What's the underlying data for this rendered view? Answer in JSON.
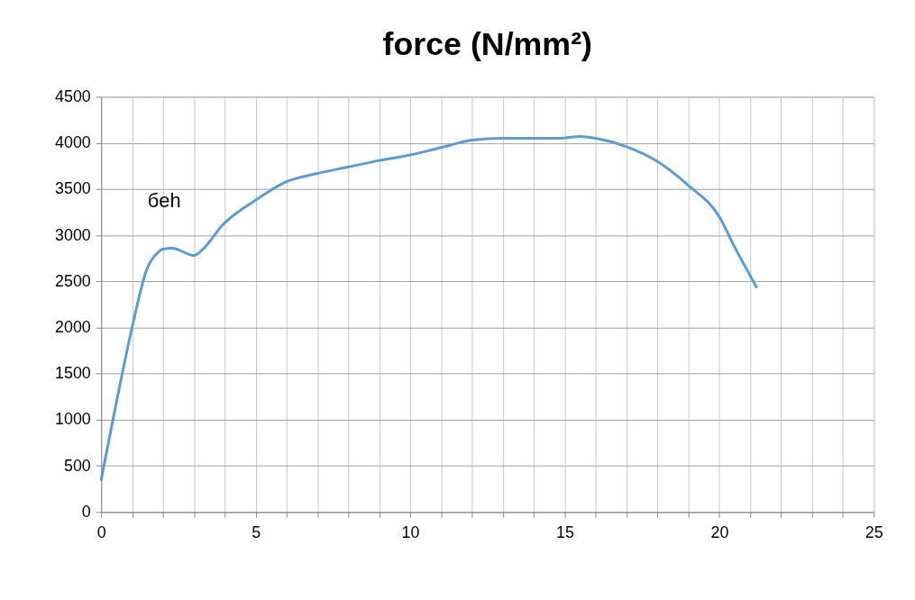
{
  "chart_data": {
    "type": "line",
    "title": "force (N/mm²)",
    "x": [
      0,
      0.5,
      1,
      1.5,
      1.8,
      2,
      2.3,
      3,
      3.3,
      3.9,
      5,
      6,
      7,
      8,
      9,
      10,
      11,
      12,
      13,
      14.8,
      15.5,
      16,
      17,
      18,
      19,
      20,
      20.5,
      21.2
    ],
    "series": [
      {
        "color": "#5b9bd5",
        "values": [
          350,
          1200,
          2000,
          2650,
          2800,
          2850,
          2860,
          2780,
          2850,
          3100,
          3380,
          3580,
          3670,
          3740,
          3810,
          3870,
          3950,
          4030,
          4050,
          4050,
          4070,
          4050,
          3960,
          3800,
          3540,
          3200,
          2870,
          2440
        ]
      }
    ],
    "xlim": [
      0,
      25
    ],
    "xticks": [
      0,
      {
        "value": 1,
        "label": null
      },
      {
        "value": 2,
        "label": null
      },
      {
        "value": 3,
        "label": null
      },
      {
        "value": 4,
        "label": null
      },
      5,
      {
        "value": 6,
        "label": null
      },
      {
        "value": 7,
        "label": null
      },
      {
        "value": 8,
        "label": null
      },
      {
        "value": 9,
        "label": null
      },
      10,
      {
        "value": 11,
        "label": null
      },
      {
        "value": 12,
        "label": null
      },
      {
        "value": 13,
        "label": null
      },
      {
        "value": 14,
        "label": null
      },
      15,
      {
        "value": 16,
        "label": null
      },
      {
        "value": 17,
        "label": null
      },
      {
        "value": 18,
        "label": null
      },
      {
        "value": 19,
        "label": null
      },
      20,
      {
        "value": 21,
        "label": null
      },
      {
        "value": 22,
        "label": null
      },
      {
        "value": 23,
        "label": null
      },
      {
        "value": 24,
        "label": null
      },
      25
    ],
    "ylim": [
      0,
      4500
    ],
    "yticks": [
      0,
      500,
      1000,
      1500,
      2000,
      2500,
      3000,
      3500,
      4000,
      4500
    ],
    "annotations": [
      "бeh"
    ],
    "grid": true,
    "marker": "none",
    "line_style": "solid"
  }
}
